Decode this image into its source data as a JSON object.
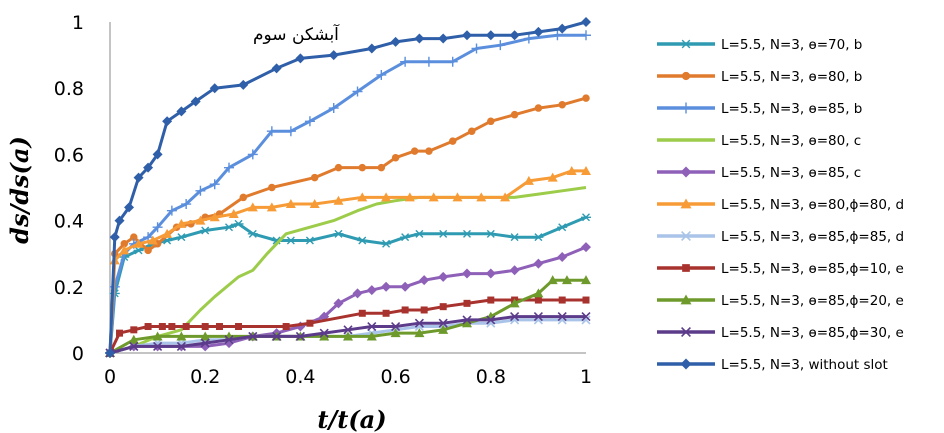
{
  "chart_data": {
    "type": "line",
    "xlabel": "t/t(a)",
    "ylabel": "ds/ds(a)",
    "annotation": "آبشکن سوم",
    "xlim": [
      0,
      1
    ],
    "ylim": [
      0,
      1
    ],
    "xticks": [
      "0",
      "0.2",
      "0.4",
      "0.6",
      "0.8",
      "1"
    ],
    "yticks": [
      "0",
      "0.2",
      "0.4",
      "0.6",
      "0.8",
      "1"
    ],
    "legend_position": "right",
    "grid": false,
    "series": [
      {
        "name": "L=5.5, N=3, ɵ=70, b",
        "color": "#2e9bb2",
        "marker": "asterisk",
        "x": [
          0,
          0.01,
          0.03,
          0.06,
          0.09,
          0.12,
          0.15,
          0.2,
          0.25,
          0.27,
          0.3,
          0.35,
          0.38,
          0.42,
          0.48,
          0.53,
          0.58,
          0.62,
          0.65,
          0.7,
          0.75,
          0.8,
          0.85,
          0.9,
          0.95,
          1.0
        ],
        "y": [
          0,
          0.18,
          0.29,
          0.31,
          0.33,
          0.34,
          0.35,
          0.37,
          0.38,
          0.39,
          0.36,
          0.34,
          0.34,
          0.34,
          0.36,
          0.34,
          0.33,
          0.35,
          0.36,
          0.36,
          0.36,
          0.36,
          0.35,
          0.35,
          0.38,
          0.41
        ]
      },
      {
        "name": "L=5.5, N=3, ɵ=80, b",
        "color": "#e07b2e",
        "marker": "circle",
        "x": [
          0,
          0.01,
          0.03,
          0.05,
          0.08,
          0.1,
          0.14,
          0.17,
          0.2,
          0.23,
          0.28,
          0.34,
          0.43,
          0.48,
          0.53,
          0.57,
          0.6,
          0.64,
          0.67,
          0.72,
          0.76,
          0.8,
          0.85,
          0.9,
          0.95,
          1.0
        ],
        "y": [
          0,
          0.3,
          0.33,
          0.35,
          0.31,
          0.33,
          0.38,
          0.39,
          0.41,
          0.42,
          0.47,
          0.5,
          0.53,
          0.56,
          0.56,
          0.56,
          0.59,
          0.61,
          0.61,
          0.64,
          0.67,
          0.7,
          0.72,
          0.74,
          0.75,
          0.77
        ]
      },
      {
        "name": "L=5.5, N=3, ɵ=85, b",
        "color": "#5b8fdd",
        "marker": "plus",
        "x": [
          0,
          0.01,
          0.03,
          0.05,
          0.08,
          0.1,
          0.13,
          0.16,
          0.19,
          0.22,
          0.25,
          0.3,
          0.34,
          0.38,
          0.42,
          0.47,
          0.52,
          0.57,
          0.62,
          0.67,
          0.72,
          0.77,
          0.82,
          0.88,
          0.94,
          1.0
        ],
        "y": [
          0,
          0.2,
          0.3,
          0.33,
          0.35,
          0.38,
          0.43,
          0.45,
          0.49,
          0.51,
          0.56,
          0.6,
          0.67,
          0.67,
          0.7,
          0.74,
          0.79,
          0.84,
          0.88,
          0.88,
          0.88,
          0.92,
          0.93,
          0.95,
          0.96,
          0.96
        ]
      },
      {
        "name": "L=5.5, N=3, ɵ=80, c",
        "color": "#9ccc4a",
        "marker": "none",
        "x": [
          0,
          0.05,
          0.1,
          0.15,
          0.19,
          0.22,
          0.27,
          0.3,
          0.33,
          0.37,
          0.42,
          0.47,
          0.52,
          0.56,
          0.6,
          0.65,
          0.7,
          0.75,
          0.8,
          0.85,
          0.9,
          0.95,
          1.0
        ],
        "y": [
          0,
          0.02,
          0.05,
          0.07,
          0.13,
          0.17,
          0.23,
          0.25,
          0.3,
          0.36,
          0.38,
          0.4,
          0.43,
          0.45,
          0.46,
          0.47,
          0.47,
          0.47,
          0.47,
          0.47,
          0.48,
          0.49,
          0.5
        ]
      },
      {
        "name": "L=5.5, N=3, ɵ=85, c",
        "color": "#8e60b8",
        "marker": "diamond",
        "x": [
          0,
          0.05,
          0.1,
          0.15,
          0.2,
          0.25,
          0.3,
          0.35,
          0.4,
          0.45,
          0.48,
          0.52,
          0.55,
          0.58,
          0.62,
          0.66,
          0.7,
          0.75,
          0.8,
          0.85,
          0.9,
          0.95,
          1.0
        ],
        "y": [
          0,
          0.02,
          0.02,
          0.02,
          0.02,
          0.03,
          0.05,
          0.06,
          0.08,
          0.11,
          0.15,
          0.18,
          0.19,
          0.2,
          0.2,
          0.22,
          0.23,
          0.24,
          0.24,
          0.25,
          0.27,
          0.29,
          0.32
        ]
      },
      {
        "name": "L=5.5, N=3, ɵ=80,ɸ=80, d",
        "color": "#f79b37",
        "marker": "triangle",
        "x": [
          0,
          0.01,
          0.03,
          0.06,
          0.09,
          0.12,
          0.15,
          0.19,
          0.22,
          0.26,
          0.3,
          0.34,
          0.38,
          0.43,
          0.48,
          0.53,
          0.58,
          0.63,
          0.68,
          0.73,
          0.78,
          0.83,
          0.88,
          0.93,
          0.97,
          1.0
        ],
        "y": [
          0,
          0.28,
          0.31,
          0.33,
          0.34,
          0.36,
          0.39,
          0.4,
          0.41,
          0.42,
          0.44,
          0.44,
          0.45,
          0.45,
          0.46,
          0.47,
          0.47,
          0.47,
          0.47,
          0.47,
          0.47,
          0.47,
          0.52,
          0.53,
          0.55,
          0.55
        ]
      },
      {
        "name": "L=5.5, N=3, ɵ=85,ɸ=85, d",
        "color": "#a9c4e8",
        "marker": "x",
        "x": [
          0,
          0.05,
          0.1,
          0.15,
          0.2,
          0.25,
          0.3,
          0.35,
          0.4,
          0.45,
          0.5,
          0.55,
          0.6,
          0.65,
          0.7,
          0.75,
          0.8,
          0.85,
          0.9,
          0.95,
          1.0
        ],
        "y": [
          0,
          0.02,
          0.03,
          0.03,
          0.04,
          0.04,
          0.05,
          0.05,
          0.05,
          0.05,
          0.05,
          0.06,
          0.07,
          0.08,
          0.08,
          0.09,
          0.09,
          0.1,
          0.1,
          0.1,
          0.1
        ]
      },
      {
        "name": "L=5.5, N=3, ɵ=85,ɸ=10,  e",
        "color": "#a8322d",
        "marker": "square",
        "x": [
          0,
          0.02,
          0.05,
          0.08,
          0.11,
          0.13,
          0.16,
          0.2,
          0.23,
          0.27,
          0.37,
          0.42,
          0.53,
          0.58,
          0.62,
          0.66,
          0.7,
          0.75,
          0.8,
          0.85,
          0.9,
          0.95,
          1.0
        ],
        "y": [
          0,
          0.06,
          0.07,
          0.08,
          0.08,
          0.08,
          0.08,
          0.08,
          0.08,
          0.08,
          0.08,
          0.09,
          0.12,
          0.12,
          0.13,
          0.13,
          0.14,
          0.15,
          0.16,
          0.16,
          0.16,
          0.16,
          0.16
        ]
      },
      {
        "name": "L=5.5, N=3, ɵ=85,ɸ=20,  e",
        "color": "#6e9a2c",
        "marker": "triangle",
        "x": [
          0,
          0.05,
          0.1,
          0.15,
          0.2,
          0.25,
          0.3,
          0.35,
          0.4,
          0.45,
          0.5,
          0.55,
          0.6,
          0.65,
          0.7,
          0.75,
          0.8,
          0.85,
          0.9,
          0.93,
          0.96,
          1.0
        ],
        "y": [
          0,
          0.04,
          0.05,
          0.05,
          0.05,
          0.05,
          0.05,
          0.05,
          0.05,
          0.05,
          0.05,
          0.05,
          0.06,
          0.06,
          0.07,
          0.09,
          0.11,
          0.15,
          0.18,
          0.22,
          0.22,
          0.22
        ]
      },
      {
        "name": "L=5.5, N=3, ɵ=85,ɸ=30,  e",
        "color": "#5b3b8a",
        "marker": "x",
        "x": [
          0,
          0.05,
          0.1,
          0.15,
          0.2,
          0.25,
          0.3,
          0.35,
          0.4,
          0.45,
          0.5,
          0.55,
          0.6,
          0.65,
          0.7,
          0.75,
          0.8,
          0.85,
          0.9,
          0.95,
          1.0
        ],
        "y": [
          0,
          0.02,
          0.02,
          0.02,
          0.03,
          0.04,
          0.05,
          0.05,
          0.05,
          0.06,
          0.07,
          0.08,
          0.08,
          0.09,
          0.09,
          0.1,
          0.1,
          0.11,
          0.11,
          0.11,
          0.11
        ]
      },
      {
        "name": "L=5.5, N=3, without slot",
        "color": "#2f5fa8",
        "marker": "diamond",
        "x": [
          0,
          0.01,
          0.02,
          0.04,
          0.06,
          0.08,
          0.1,
          0.12,
          0.15,
          0.18,
          0.22,
          0.28,
          0.35,
          0.4,
          0.47,
          0.55,
          0.6,
          0.65,
          0.7,
          0.75,
          0.8,
          0.85,
          0.9,
          0.95,
          1.0
        ],
        "y": [
          0,
          0.35,
          0.4,
          0.44,
          0.53,
          0.56,
          0.6,
          0.7,
          0.73,
          0.76,
          0.8,
          0.81,
          0.86,
          0.89,
          0.9,
          0.92,
          0.94,
          0.95,
          0.95,
          0.96,
          0.96,
          0.96,
          0.97,
          0.98,
          1.0
        ]
      }
    ]
  }
}
